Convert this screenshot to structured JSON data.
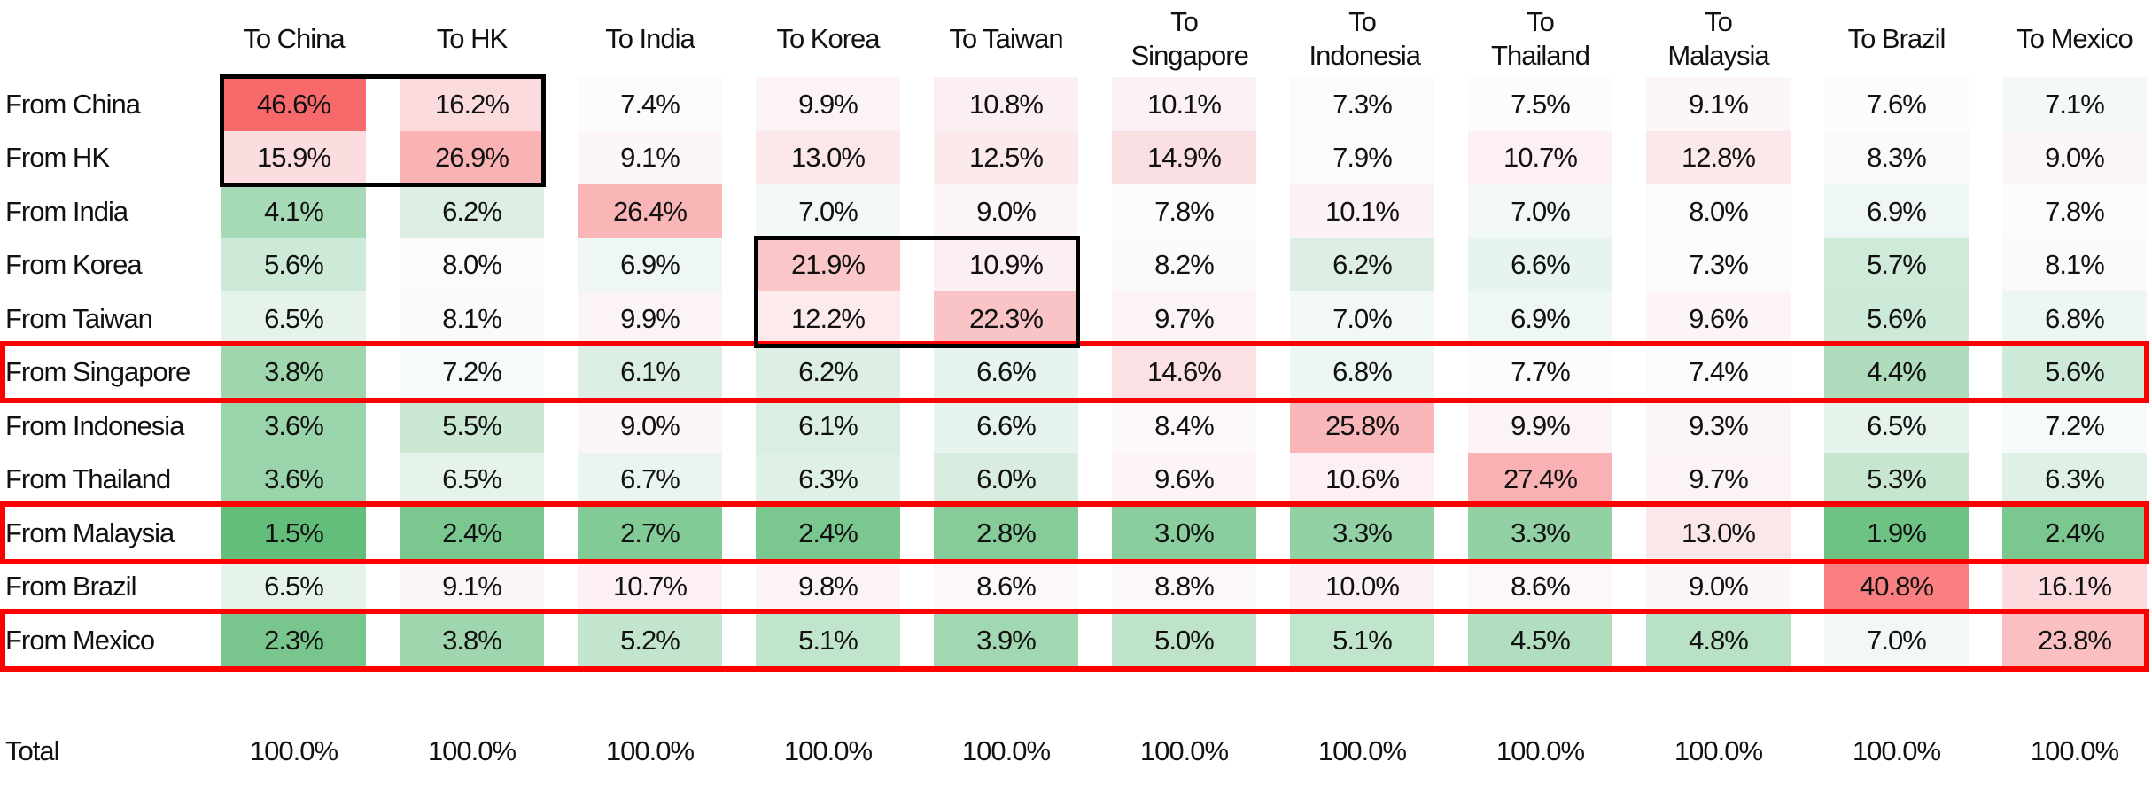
{
  "chart_data": {
    "type": "heatmap",
    "columns": [
      "To China",
      "To HK",
      "To India",
      "To Korea",
      "To Taiwan",
      "To Singapore",
      "To Indonesia",
      "To Thailand",
      "To Malaysia",
      "To Brazil",
      "To Mexico"
    ],
    "rows": [
      {
        "label": "From China",
        "values": [
          "46.6%",
          "16.2%",
          "7.4%",
          "9.9%",
          "10.8%",
          "10.1%",
          "7.3%",
          "7.5%",
          "9.1%",
          "7.6%",
          "7.1%"
        ]
      },
      {
        "label": "From HK",
        "values": [
          "15.9%",
          "26.9%",
          "9.1%",
          "13.0%",
          "12.5%",
          "14.9%",
          "7.9%",
          "10.7%",
          "12.8%",
          "8.3%",
          "9.0%"
        ]
      },
      {
        "label": "From India",
        "values": [
          "4.1%",
          "6.2%",
          "26.4%",
          "7.0%",
          "9.0%",
          "7.8%",
          "10.1%",
          "7.0%",
          "8.0%",
          "6.9%",
          "7.8%"
        ]
      },
      {
        "label": "From Korea",
        "values": [
          "5.6%",
          "8.0%",
          "6.9%",
          "21.9%",
          "10.9%",
          "8.2%",
          "6.2%",
          "6.6%",
          "7.3%",
          "5.7%",
          "8.1%"
        ]
      },
      {
        "label": "From Taiwan",
        "values": [
          "6.5%",
          "8.1%",
          "9.9%",
          "12.2%",
          "22.3%",
          "9.7%",
          "7.0%",
          "6.9%",
          "9.6%",
          "5.6%",
          "6.8%"
        ]
      },
      {
        "label": "From Singapore",
        "values": [
          "3.8%",
          "7.2%",
          "6.1%",
          "6.2%",
          "6.6%",
          "14.6%",
          "6.8%",
          "7.7%",
          "7.4%",
          "4.4%",
          "5.6%"
        ]
      },
      {
        "label": "From Indonesia",
        "values": [
          "3.6%",
          "5.5%",
          "9.0%",
          "6.1%",
          "6.6%",
          "8.4%",
          "25.8%",
          "9.9%",
          "9.3%",
          "6.5%",
          "7.2%"
        ]
      },
      {
        "label": "From Thailand",
        "values": [
          "3.6%",
          "6.5%",
          "6.7%",
          "6.3%",
          "6.0%",
          "9.6%",
          "10.6%",
          "27.4%",
          "9.7%",
          "5.3%",
          "6.3%"
        ]
      },
      {
        "label": "From Malaysia",
        "values": [
          "1.5%",
          "2.4%",
          "2.7%",
          "2.4%",
          "2.8%",
          "3.0%",
          "3.3%",
          "3.3%",
          "13.0%",
          "1.9%",
          "2.4%"
        ]
      },
      {
        "label": "From Brazil",
        "values": [
          "6.5%",
          "9.1%",
          "10.7%",
          "9.8%",
          "8.6%",
          "8.8%",
          "10.0%",
          "8.6%",
          "9.0%",
          "40.8%",
          "16.1%"
        ]
      },
      {
        "label": "From Mexico",
        "values": [
          "2.3%",
          "3.8%",
          "5.2%",
          "5.1%",
          "3.9%",
          "5.0%",
          "5.1%",
          "4.5%",
          "4.8%",
          "7.0%",
          "23.8%"
        ]
      }
    ],
    "total": {
      "label": "Total",
      "values": [
        "100.0%",
        "100.0%",
        "100.0%",
        "100.0%",
        "100.0%",
        "100.0%",
        "100.0%",
        "100.0%",
        "100.0%",
        "100.0%",
        "100.0%"
      ]
    },
    "color_scale": {
      "low": "#63BE7B",
      "mid": "#FCFCFF",
      "high": "#F8696B"
    },
    "highlight_rows_red": [
      "From Singapore",
      "From Malaysia",
      "From Mexico"
    ],
    "highlight_blocks_black": [
      [
        "From China",
        "From HK",
        "To China",
        "To HK"
      ],
      [
        "From Korea",
        "From Taiwan",
        "To Korea",
        "To Taiwan"
      ]
    ]
  }
}
